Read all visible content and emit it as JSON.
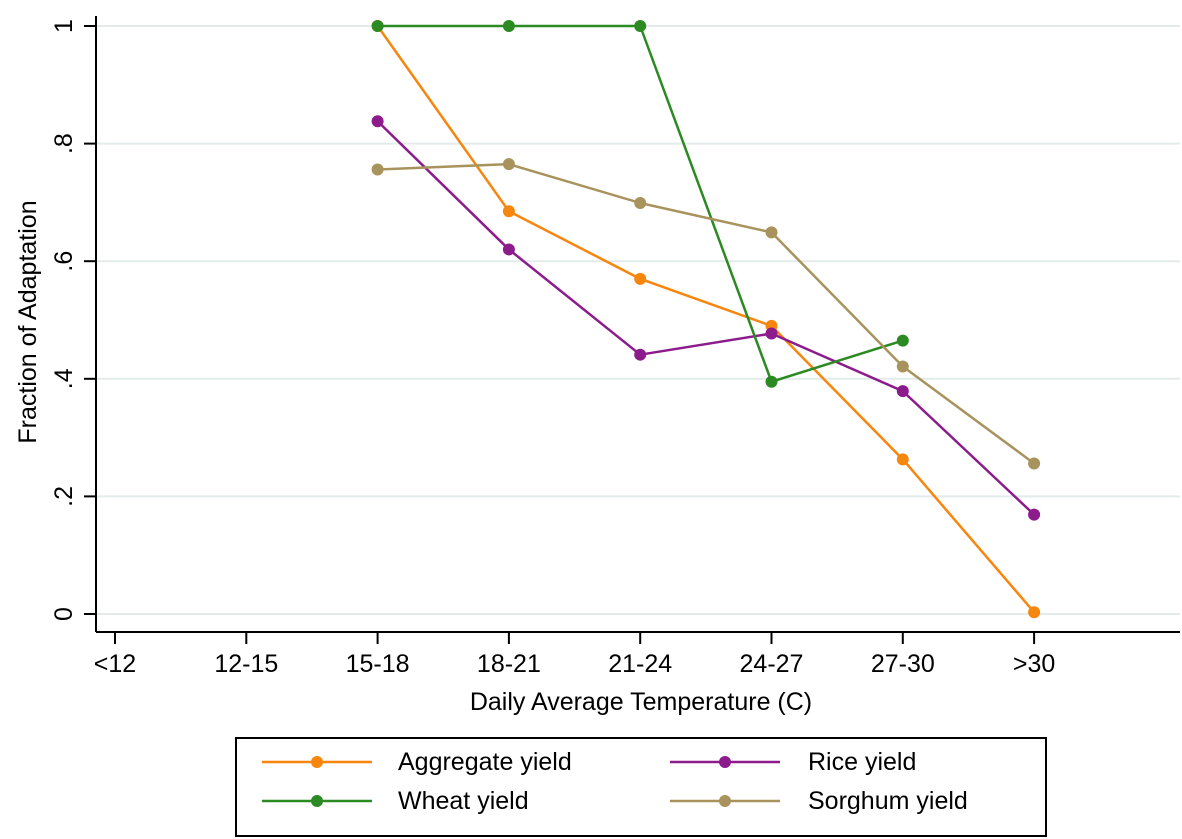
{
  "chart_data": {
    "type": "line",
    "categories": [
      "<12",
      "12-15",
      "15-18",
      "18-21",
      "21-24",
      "24-27",
      "27-30",
      ">30"
    ],
    "xlabel": "Daily Average Temperature (C)",
    "ylabel": "Fraction of Adaptation",
    "ylim": [
      0,
      1
    ],
    "yticks": [
      0,
      0.2,
      0.4,
      0.6,
      0.8,
      1
    ],
    "ytick_labels": [
      "0",
      ".2",
      ".4",
      ".6",
      ".8",
      "1"
    ],
    "grid": true,
    "legend_position": "bottom",
    "series": [
      {
        "name": "Aggregate yield",
        "color": "#f7860f",
        "values": [
          null,
          null,
          1.0,
          0.685,
          0.57,
          0.49,
          0.263,
          0.003
        ]
      },
      {
        "name": "Rice yield",
        "color": "#8c1b8c",
        "values": [
          null,
          null,
          0.838,
          0.62,
          0.441,
          0.477,
          0.379,
          0.169
        ]
      },
      {
        "name": "Wheat yield",
        "color": "#2c8a22",
        "values": [
          null,
          null,
          1.0,
          1.0,
          1.0,
          0.395,
          0.465,
          null
        ]
      },
      {
        "name": "Sorghum yield",
        "color": "#a8935c",
        "values": [
          null,
          null,
          0.756,
          0.765,
          0.699,
          0.649,
          0.421,
          0.256
        ]
      }
    ]
  }
}
